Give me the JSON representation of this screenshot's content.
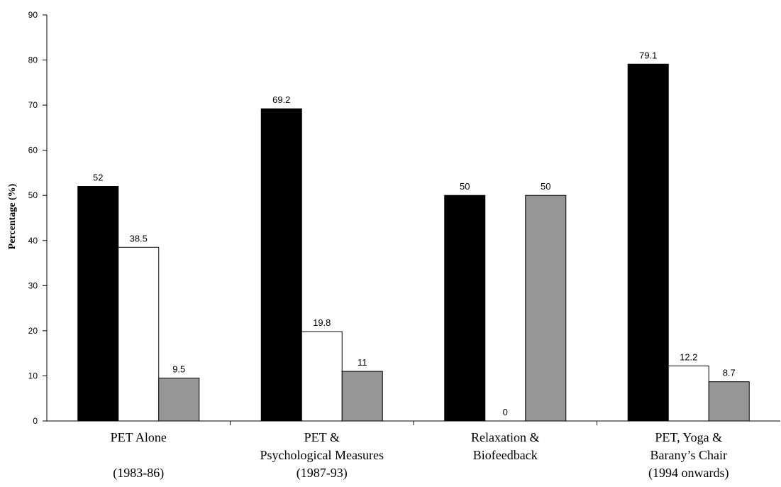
{
  "chart_data": {
    "type": "bar",
    "title": "",
    "xlabel": "",
    "ylabel": "Percentage (%)",
    "ylim": [
      0,
      90
    ],
    "yticks": [
      0,
      10,
      20,
      30,
      40,
      50,
      60,
      70,
      80,
      90
    ],
    "grid": false,
    "legend": "none",
    "categories": [
      {
        "lines": [
          "PET Alone",
          "",
          "(1983-86)"
        ]
      },
      {
        "lines": [
          "PET &",
          "Psychological Measures",
          "(1987-93)"
        ]
      },
      {
        "lines": [
          "Relaxation &",
          "Biofeedback",
          ""
        ]
      },
      {
        "lines": [
          "PET, Yoga &",
          "Barany’s Chair",
          "(1994 onwards)"
        ]
      }
    ],
    "series": [
      {
        "color": "#000000",
        "values": [
          52,
          69.2,
          50,
          79.1
        ],
        "labels": [
          "52",
          "69.2",
          "50",
          "79.1"
        ]
      },
      {
        "color": "#ffffff",
        "values": [
          38.5,
          19.8,
          0,
          12.2
        ],
        "labels": [
          "38.5",
          "19.8",
          "0",
          "12.2"
        ]
      },
      {
        "color": "#969696",
        "values": [
          9.5,
          11,
          50,
          8.7
        ],
        "labels": [
          "9.5",
          "11",
          "50",
          "8.7"
        ]
      }
    ]
  }
}
